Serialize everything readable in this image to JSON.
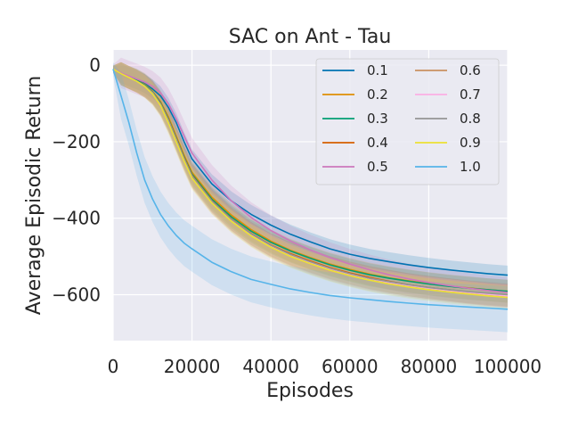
{
  "chart_data": {
    "type": "line",
    "title": "SAC on Ant - Tau",
    "xlabel": "Episodes",
    "ylabel": "Average Episodic Return",
    "xlim": [
      0,
      100000
    ],
    "ylim": [
      -720,
      40
    ],
    "xticks": [
      0,
      20000,
      40000,
      60000,
      80000,
      100000
    ],
    "yticks": [
      0,
      -200,
      -400,
      -600
    ],
    "grid": true,
    "legend_position": "top-right",
    "legend_columns": 2,
    "x": [
      0,
      2000,
      4000,
      6000,
      8000,
      10000,
      12000,
      14000,
      16000,
      18000,
      20000,
      25000,
      30000,
      35000,
      40000,
      45000,
      50000,
      55000,
      60000,
      65000,
      70000,
      75000,
      80000,
      85000,
      90000,
      95000,
      100000
    ],
    "series": [
      {
        "name": "0.1",
        "color": "#0173b2",
        "band": 25,
        "values": [
          -10,
          -22,
          -30,
          -38,
          -48,
          -62,
          -80,
          -110,
          -150,
          -200,
          -245,
          -310,
          -355,
          -390,
          -418,
          -442,
          -462,
          -480,
          -494,
          -505,
          -514,
          -522,
          -529,
          -535,
          -540,
          -545,
          -549
        ]
      },
      {
        "name": "0.2",
        "color": "#de8f05",
        "band": 30,
        "values": [
          -10,
          -22,
          -32,
          -40,
          -50,
          -68,
          -95,
          -135,
          -185,
          -235,
          -280,
          -345,
          -392,
          -430,
          -460,
          -484,
          -503,
          -520,
          -534,
          -546,
          -556,
          -564,
          -571,
          -577,
          -582,
          -587,
          -591
        ]
      },
      {
        "name": "0.3",
        "color": "#029e73",
        "band": 30,
        "values": [
          -10,
          -22,
          -32,
          -40,
          -52,
          -70,
          -98,
          -140,
          -190,
          -240,
          -285,
          -350,
          -397,
          -434,
          -463,
          -486,
          -505,
          -522,
          -536,
          -548,
          -557,
          -565,
          -572,
          -578,
          -583,
          -587,
          -591
        ]
      },
      {
        "name": "0.4",
        "color": "#d55e00",
        "band": 30,
        "values": [
          -10,
          -22,
          -32,
          -42,
          -54,
          -72,
          -100,
          -142,
          -192,
          -242,
          -288,
          -354,
          -402,
          -440,
          -470,
          -493,
          -512,
          -529,
          -543,
          -555,
          -565,
          -574,
          -581,
          -587,
          -593,
          -598,
          -602
        ]
      },
      {
        "name": "0.5",
        "color": "#cc78bc",
        "band": 40,
        "values": [
          -10,
          -20,
          -28,
          -36,
          -44,
          -55,
          -72,
          -100,
          -140,
          -185,
          -230,
          -300,
          -355,
          -398,
          -432,
          -460,
          -483,
          -503,
          -520,
          -535,
          -548,
          -559,
          -568,
          -576,
          -583,
          -589,
          -594
        ]
      },
      {
        "name": "0.6",
        "color": "#ca9161",
        "band": 30,
        "values": [
          -10,
          -22,
          -32,
          -42,
          -54,
          -72,
          -102,
          -145,
          -195,
          -246,
          -292,
          -358,
          -406,
          -444,
          -474,
          -498,
          -517,
          -534,
          -548,
          -560,
          -569,
          -577,
          -584,
          -590,
          -595,
          -600,
          -603
        ]
      },
      {
        "name": "0.7",
        "color": "#fbafe4",
        "band": 30,
        "values": [
          -10,
          -22,
          -32,
          -42,
          -54,
          -72,
          -102,
          -144,
          -194,
          -245,
          -290,
          -356,
          -404,
          -442,
          -472,
          -496,
          -515,
          -532,
          -546,
          -558,
          -568,
          -576,
          -583,
          -589,
          -594,
          -599,
          -603
        ]
      },
      {
        "name": "0.8",
        "color": "#949494",
        "band": 30,
        "values": [
          -10,
          -22,
          -32,
          -42,
          -54,
          -72,
          -101,
          -144,
          -194,
          -244,
          -290,
          -355,
          -403,
          -441,
          -471,
          -495,
          -514,
          -531,
          -545,
          -557,
          -566,
          -574,
          -581,
          -587,
          -592,
          -596,
          -600
        ]
      },
      {
        "name": "0.9",
        "color": "#ece133",
        "band": 30,
        "values": [
          -10,
          -22,
          -32,
          -42,
          -55,
          -75,
          -105,
          -150,
          -200,
          -250,
          -295,
          -360,
          -408,
          -446,
          -476,
          -500,
          -519,
          -536,
          -550,
          -562,
          -572,
          -580,
          -587,
          -593,
          -598,
          -603,
          -607
        ]
      },
      {
        "name": "1.0",
        "color": "#56b4e9",
        "band": 60,
        "values": [
          -10,
          -80,
          -150,
          -230,
          -300,
          -350,
          -390,
          -420,
          -445,
          -465,
          -480,
          -515,
          -540,
          -560,
          -573,
          -585,
          -594,
          -602,
          -608,
          -613,
          -618,
          -622,
          -626,
          -629,
          -632,
          -635,
          -638
        ]
      }
    ]
  }
}
